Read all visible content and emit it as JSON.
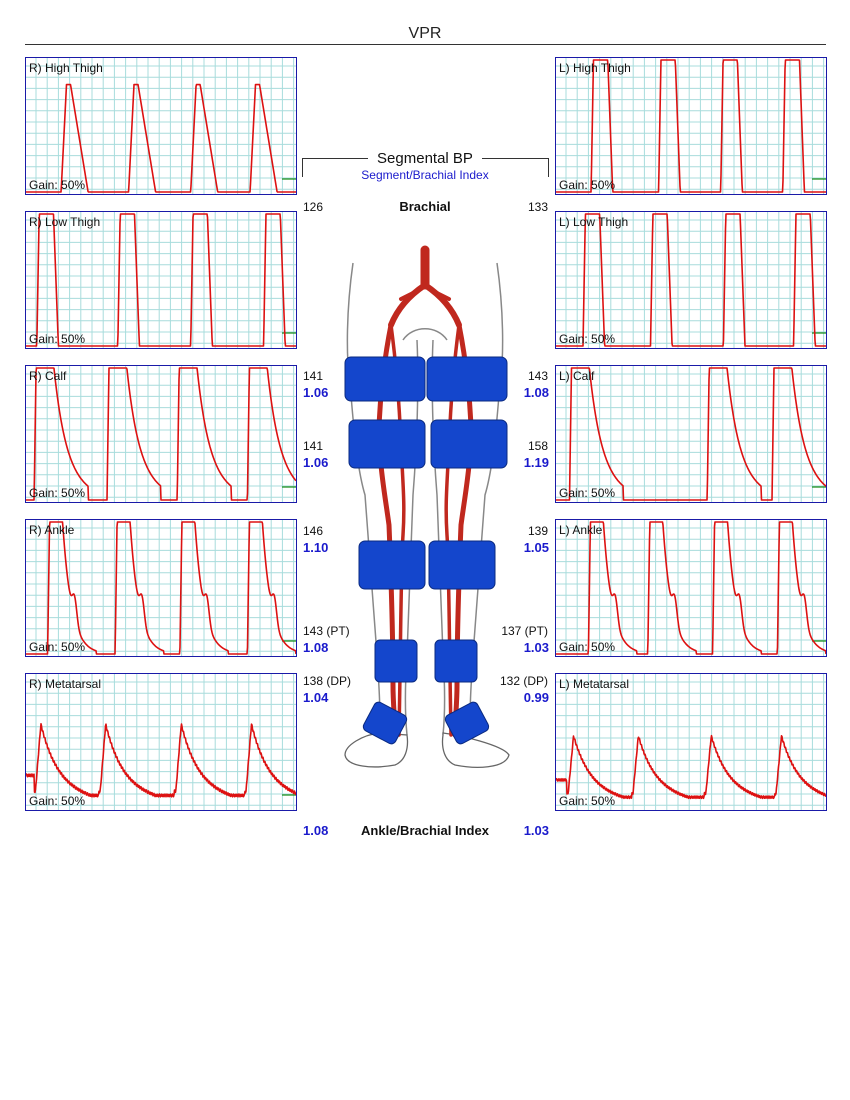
{
  "title": "VPR",
  "center": {
    "title": "Segmental BP",
    "subtitle": "Segment/Brachial Index",
    "brachial_label": "Brachial",
    "abi_label": "Ankle/Brachial Index",
    "brachial_right": "126",
    "brachial_left": "133",
    "abi_right": "1.08",
    "abi_left": "1.03"
  },
  "segments": {
    "right": [
      {
        "pressure": "141",
        "index": "1.06"
      },
      {
        "pressure": "141",
        "index": "1.06"
      },
      {
        "pressure": "146",
        "index": "1.10"
      },
      {
        "pressure": "143 (PT)",
        "index": "1.08"
      },
      {
        "pressure": "138 (DP)",
        "index": "1.04"
      }
    ],
    "left": [
      {
        "pressure": "143",
        "index": "1.08"
      },
      {
        "pressure": "158",
        "index": "1.19"
      },
      {
        "pressure": "139",
        "index": "1.05"
      },
      {
        "pressure": "137 (PT)",
        "index": "1.03"
      },
      {
        "pressure": "132 (DP)",
        "index": "0.99"
      }
    ]
  },
  "colors": {
    "waveform": "#dd1111",
    "grid": "#a8dcdc",
    "border": "#1a1aa8",
    "baseline_marker": "#118811",
    "index_text": "#1a1acc",
    "artery": "#c0281e",
    "cuff": "#1446cc"
  },
  "chart_data": [
    {
      "type": "line",
      "title": "R) High Thigh",
      "gain": "Gain: 50%",
      "shape": "thigh",
      "peaks": [
        0.13,
        0.38,
        0.61,
        0.83
      ],
      "amplitude": 0.83,
      "clipped": false,
      "baseline_marker": true
    },
    {
      "type": "line",
      "title": "R) Low Thigh",
      "gain": "Gain: 50%",
      "shape": "square",
      "peaks": [
        0.04,
        0.34,
        0.61,
        0.88
      ],
      "amplitude": 1.0,
      "clipped": true,
      "baseline_marker": true
    },
    {
      "type": "line",
      "title": "R) Calf",
      "gain": "Gain: 50%",
      "shape": "calf",
      "peaks": [
        0.03,
        0.3,
        0.56,
        0.82
      ],
      "amplitude": 1.0,
      "clipped": true,
      "baseline_marker": true
    },
    {
      "type": "line",
      "title": "R) Ankle",
      "gain": "Gain: 50%",
      "shape": "ankle",
      "peaks": [
        0.08,
        0.33,
        0.57,
        0.82
      ],
      "amplitude": 1.0,
      "clipped": true,
      "baseline_marker": true
    },
    {
      "type": "line",
      "title": "R) Metatarsal",
      "gain": "Gain: 50%",
      "shape": "meta",
      "peaks": [
        0.03,
        0.27,
        0.55,
        0.81
      ],
      "amplitude": 0.72,
      "clipped": false,
      "baseline_marker": true
    },
    {
      "type": "line",
      "title": "L) High Thigh",
      "gain": "Gain: 50%",
      "shape": "square",
      "peaks": [
        0.13,
        0.38,
        0.61,
        0.84
      ],
      "amplitude": 1.0,
      "clipped": true,
      "baseline_marker": true
    },
    {
      "type": "line",
      "title": "L) Low Thigh",
      "gain": "Gain: 50%",
      "shape": "square",
      "peaks": [
        0.1,
        0.35,
        0.62,
        0.88
      ],
      "amplitude": 1.0,
      "clipped": true,
      "baseline_marker": true
    },
    {
      "type": "line",
      "title": "L) Calf",
      "gain": "Gain: 50%",
      "shape": "calf",
      "peaks": [
        0.05,
        0.56,
        0.8
      ],
      "amplitude": 1.0,
      "clipped": true,
      "baseline_marker": true
    },
    {
      "type": "line",
      "title": "L) Ankle",
      "gain": "Gain: 50%",
      "shape": "ankle",
      "peaks": [
        0.12,
        0.34,
        0.58,
        0.82
      ],
      "amplitude": 1.0,
      "clipped": true,
      "baseline_marker": true
    },
    {
      "type": "line",
      "title": "L) Metatarsal",
      "gain": "Gain: 50%",
      "shape": "meta",
      "peaks": [
        0.04,
        0.28,
        0.55,
        0.81
      ],
      "amplitude": 0.62,
      "clipped": false,
      "baseline_marker": false
    }
  ]
}
